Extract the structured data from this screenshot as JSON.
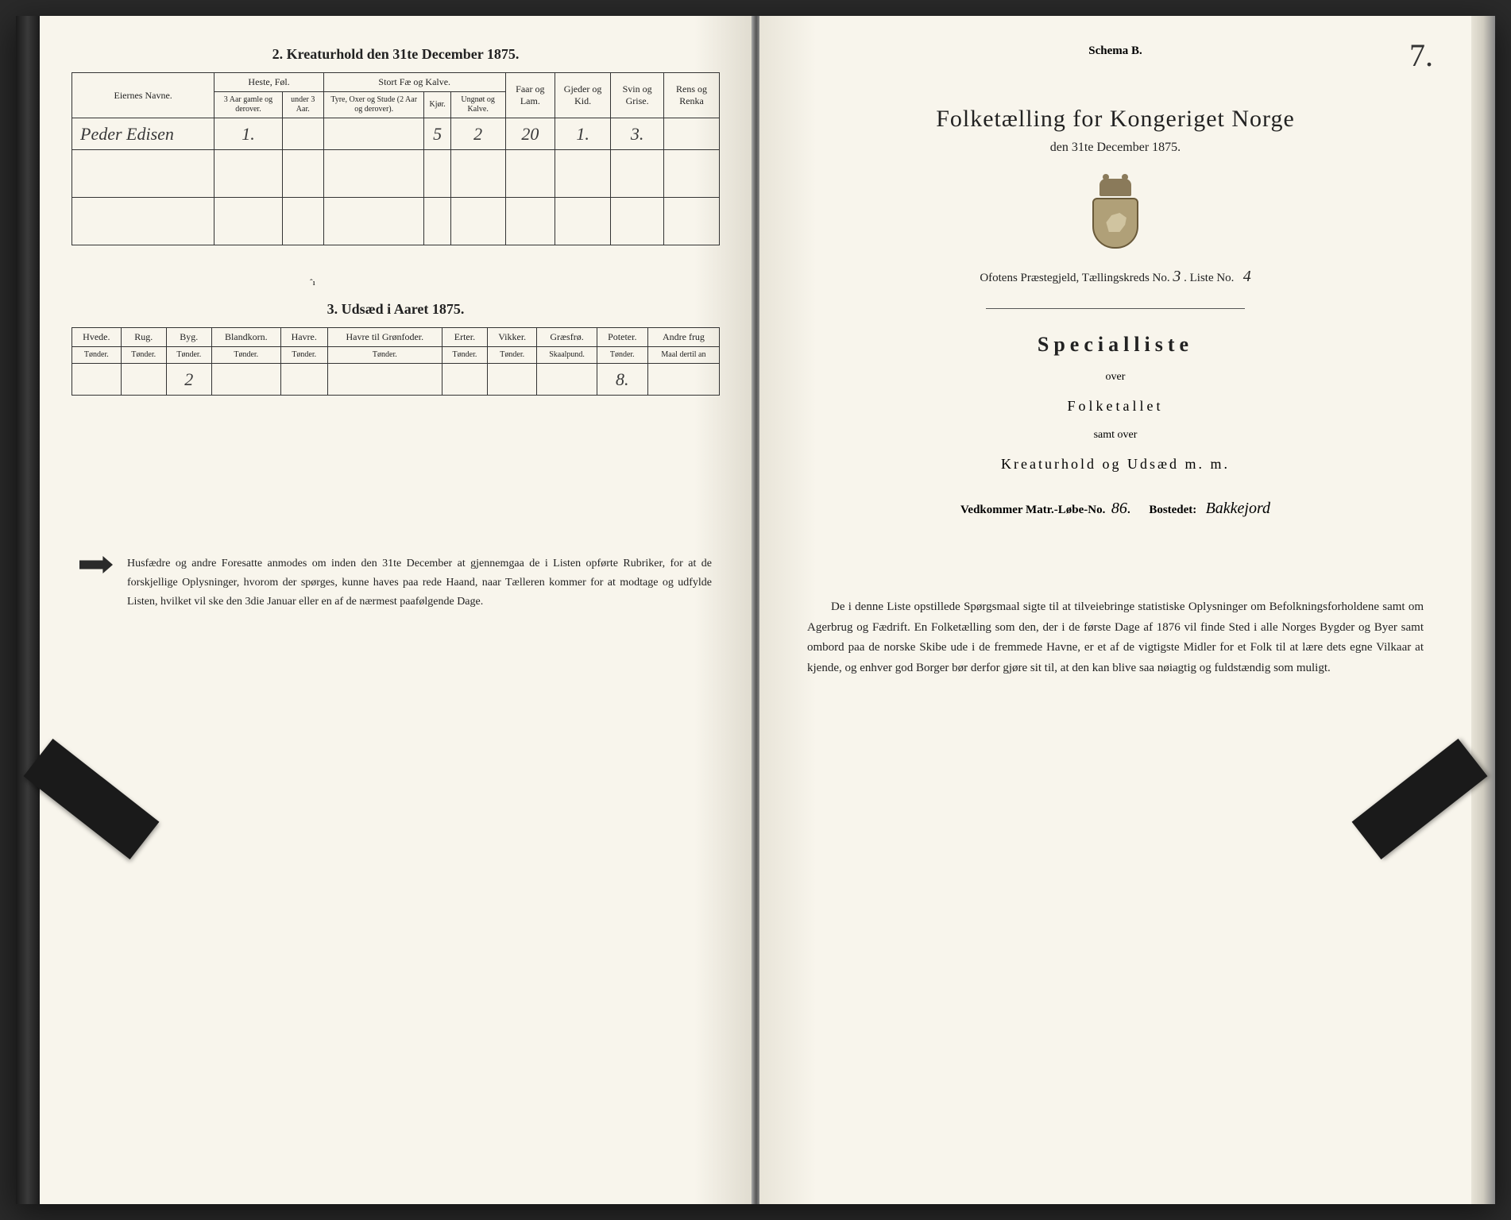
{
  "left": {
    "section2_title": "2.  Kreaturhold den 31te December 1875.",
    "table2": {
      "col_owner": "Eiernes Navne.",
      "group_horses": "Heste, Føl.",
      "group_cattle": "Stort Fæ og Kalve.",
      "col_sheep": "Faar og Lam.",
      "col_goats": "Gjeder og Kid.",
      "col_pigs": "Svin og Grise.",
      "col_rein": "Rens og Renka",
      "sub_h1": "3 Aar gamle og derover.",
      "sub_h2": "under 3 Aar.",
      "sub_c1": "Tyre, Oxer og Stude (2 Aar og derover).",
      "sub_c2": "Kjør.",
      "sub_c3": "Ungnøt og Kalve.",
      "owner_name": "Peder Edisen",
      "row": {
        "h1": "1.",
        "h2": "",
        "c1": "",
        "c2": "5",
        "c3": "2",
        "sheep": "20",
        "goats": "1.",
        "pigs": "3.",
        "rein": ""
      }
    },
    "section3_title": "3.  Udsæd i Aaret 1875.",
    "table3": {
      "cols": [
        "Hvede.",
        "Rug.",
        "Byg.",
        "Blandkorn.",
        "Havre.",
        "Havre til Grønfoder.",
        "Erter.",
        "Vikker.",
        "Græsfrø.",
        "Poteter.",
        "Andre frug"
      ],
      "units": [
        "Tønder.",
        "Tønder.",
        "Tønder.",
        "Tønder.",
        "Tønder.",
        "Tønder.",
        "Tønder.",
        "Tønder.",
        "Skaalpund.",
        "Tønder.",
        "Maal dertil an"
      ],
      "row": [
        "",
        "",
        "2",
        "",
        "",
        "",
        "",
        "",
        "",
        "8.",
        ""
      ]
    },
    "instruction": "Husfædre og andre Foresatte anmodes om inden den 31te December at gjennemgaa de i Listen opførte Rubriker, for at de forskjellige Oplysninger, hvorom der spørges, kunne haves paa rede Haand, naar Tælleren kommer for at modtage og udfylde Listen, hvilket vil ske den 3die Januar eller en af de nærmest paafølgende Dage."
  },
  "right": {
    "schema": "Schema B.",
    "page_number": "7.",
    "main_title": "Folketælling for Kongeriget Norge",
    "sub_date": "den 31te December 1875.",
    "kreds_prefix": "Ofotens Præstegjeld, Tællingskreds No.",
    "kreds_no": "3",
    "liste_label": ".   Liste No.",
    "liste_no": "4",
    "spec_title": "Specialliste",
    "over": "over",
    "folketallet": "Folketallet",
    "samt": "samt over",
    "kreatur": "Kreaturhold og Udsæd m. m.",
    "matr_label": "Vedkommer Matr.-Løbe-No.",
    "matr_no": "86.",
    "bosted_label": "Bostedet:",
    "bosted_val": "Bakkejord",
    "para": "De i denne Liste opstillede Spørgsmaal sigte til at tilveiebringe statistiske Oplysninger om Befolkningsforholdene samt om Agerbrug og Fædrift.  En Folketælling som den, der i de første Dage af 1876 vil finde Sted i alle Norges Bygder og Byer samt ombord paa de norske Skibe ude i de fremmede Havne, er et af de vigtigste Midler for et Folk til at lære dets egne Vilkaar at kjende, og enhver god Borger bør derfor gjøre sit til, at den kan blive saa nøiagtig og fuldstændig som muligt."
  }
}
